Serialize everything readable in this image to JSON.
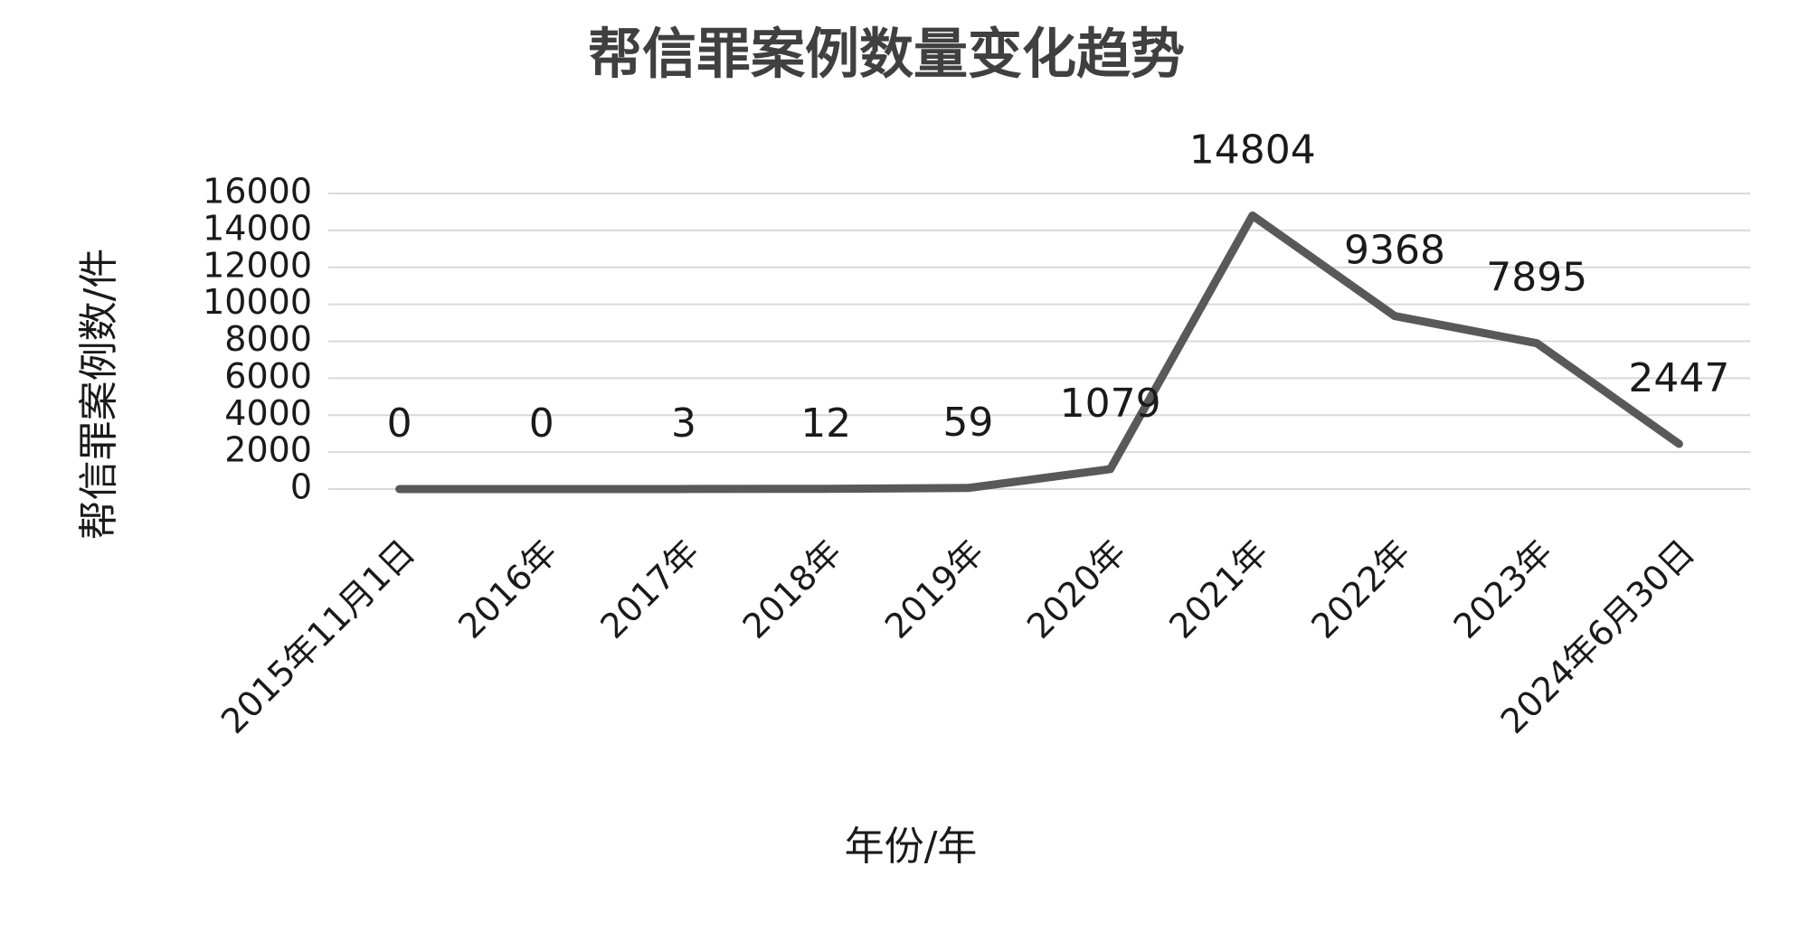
{
  "chart_data": {
    "type": "line",
    "title": "帮信罪案例数量变化趋势",
    "x_label": "年份/年",
    "y_label": "帮信罪案例数/件",
    "categories": [
      "2015年11月1日",
      "2016年",
      "2017年",
      "2018年",
      "2019年",
      "2020年",
      "2021年",
      "2022年",
      "2023年",
      "2024年6月30日"
    ],
    "series": [
      {
        "name": "帮信罪案例数",
        "color": "#595959",
        "values": [
          0,
          0,
          3,
          12,
          59,
          1079,
          14804,
          9368,
          7895,
          2447
        ]
      }
    ],
    "ylim": [
      0,
      16000
    ],
    "yticks": [
      0,
      2000,
      4000,
      6000,
      8000,
      10000,
      12000,
      14000,
      16000
    ],
    "grid": true
  }
}
